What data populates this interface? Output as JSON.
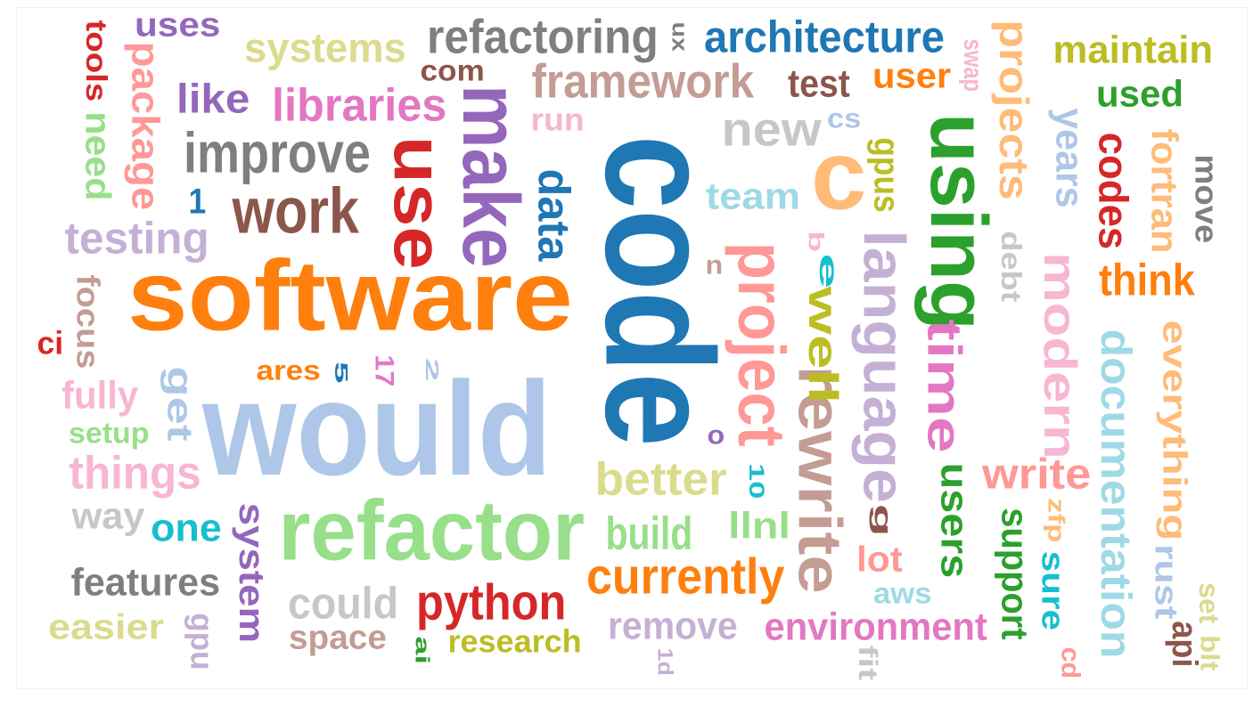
{
  "words": [
    {
      "text": "software",
      "color": "#ff7f0e"
    },
    {
      "text": "would",
      "color": "#aec7e8"
    },
    {
      "text": "code",
      "color": "#1f77b4"
    },
    {
      "text": "refactor",
      "color": "#98df8a"
    },
    {
      "text": "using",
      "color": "#2ca02c"
    },
    {
      "text": "make",
      "color": "#9467bd"
    },
    {
      "text": "use",
      "color": "#d62728"
    },
    {
      "text": "work",
      "color": "#8c564b"
    },
    {
      "text": "improve",
      "color": "#7f7f7f"
    },
    {
      "text": "c",
      "color": "#ffbb78"
    },
    {
      "text": "project",
      "color": "#ff9896"
    },
    {
      "text": "rewrite",
      "color": "#c49c94"
    },
    {
      "text": "language",
      "color": "#c5b0d5"
    },
    {
      "text": "time",
      "color": "#e377c2"
    },
    {
      "text": "modern",
      "color": "#f7b6d2"
    },
    {
      "text": "documentation",
      "color": "#9edae5"
    },
    {
      "text": "everything",
      "color": "#ffbb78"
    },
    {
      "text": "refactoring",
      "color": "#7f7f7f"
    },
    {
      "text": "architecture",
      "color": "#1f77b4"
    },
    {
      "text": "framework",
      "color": "#c49c94"
    },
    {
      "text": "systems",
      "color": "#dbdb8d"
    },
    {
      "text": "libraries",
      "color": "#e377c2"
    },
    {
      "text": "testing",
      "color": "#c5b0d5"
    },
    {
      "text": "package",
      "color": "#ff9896"
    },
    {
      "text": "tools",
      "color": "#d62728"
    },
    {
      "text": "uses",
      "color": "#9467bd"
    },
    {
      "text": "like",
      "color": "#9467bd"
    },
    {
      "text": "need",
      "color": "#98df8a"
    },
    {
      "text": "focus",
      "color": "#c49c94"
    },
    {
      "text": "ci",
      "color": "#d62728"
    },
    {
      "text": "1",
      "color": "#1f77b4"
    },
    {
      "text": "fully",
      "color": "#f7b6d2"
    },
    {
      "text": "setup",
      "color": "#98df8a"
    },
    {
      "text": "get",
      "color": "#aec7e8"
    },
    {
      "text": "things",
      "color": "#f7b6d2"
    },
    {
      "text": "way",
      "color": "#c7c7c7"
    },
    {
      "text": "one",
      "color": "#17becf"
    },
    {
      "text": "features",
      "color": "#7f7f7f"
    },
    {
      "text": "easier",
      "color": "#dbdb8d"
    },
    {
      "text": "gpu",
      "color": "#c5b0d5"
    },
    {
      "text": "system",
      "color": "#9467bd"
    },
    {
      "text": "could",
      "color": "#c7c7c7"
    },
    {
      "text": "space",
      "color": "#c49c94"
    },
    {
      "text": "python",
      "color": "#d62728"
    },
    {
      "text": "ai",
      "color": "#2ca02c"
    },
    {
      "text": "research",
      "color": "#bcbd22"
    },
    {
      "text": "ares",
      "color": "#ff7f0e"
    },
    {
      "text": "5",
      "color": "#1f77b4"
    },
    {
      "text": "17",
      "color": "#e377c2"
    },
    {
      "text": "2",
      "color": "#aec7e8"
    },
    {
      "text": "data",
      "color": "#1f77b4"
    },
    {
      "text": "run",
      "color": "#f7b6d2"
    },
    {
      "text": "com",
      "color": "#8c564b"
    },
    {
      "text": "ux",
      "color": "#7f7f7f"
    },
    {
      "text": "test",
      "color": "#8c564b"
    },
    {
      "text": "user",
      "color": "#ff7f0e"
    },
    {
      "text": "swap",
      "color": "#f7b6d2"
    },
    {
      "text": "new",
      "color": "#c7c7c7"
    },
    {
      "text": "cs",
      "color": "#aec7e8"
    },
    {
      "text": "team",
      "color": "#9edae5"
    },
    {
      "text": "gpus",
      "color": "#bcbd22"
    },
    {
      "text": "projects",
      "color": "#ffbb78"
    },
    {
      "text": "maintain",
      "color": "#bcbd22"
    },
    {
      "text": "used",
      "color": "#2ca02c"
    },
    {
      "text": "years",
      "color": "#aec7e8"
    },
    {
      "text": "codes",
      "color": "#d62728"
    },
    {
      "text": "fortran",
      "color": "#ffbb78"
    },
    {
      "text": "move",
      "color": "#7f7f7f"
    },
    {
      "text": "think",
      "color": "#ff7f0e"
    },
    {
      "text": "debt",
      "color": "#c7c7c7"
    },
    {
      "text": "b",
      "color": "#f7b6d2"
    },
    {
      "text": "e",
      "color": "#17becf"
    },
    {
      "text": "n",
      "color": "#c49c94"
    },
    {
      "text": "well",
      "color": "#bcbd22"
    },
    {
      "text": "o",
      "color": "#9467bd"
    },
    {
      "text": "10",
      "color": "#17becf"
    },
    {
      "text": "better",
      "color": "#dbdb8d"
    },
    {
      "text": "build",
      "color": "#98df8a"
    },
    {
      "text": "llnl",
      "color": "#98df8a"
    },
    {
      "text": "currently",
      "color": "#ff7f0e"
    },
    {
      "text": "remove",
      "color": "#c5b0d5"
    },
    {
      "text": "1d",
      "color": "#c5b0d5"
    },
    {
      "text": "environment",
      "color": "#e377c2"
    },
    {
      "text": "g",
      "color": "#8c564b"
    },
    {
      "text": "lot",
      "color": "#ff9896"
    },
    {
      "text": "aws",
      "color": "#9edae5"
    },
    {
      "text": "fit",
      "color": "#c7c7c7"
    },
    {
      "text": "users",
      "color": "#2ca02c"
    },
    {
      "text": "write",
      "color": "#ff9896"
    },
    {
      "text": "zfp",
      "color": "#ffbb78"
    },
    {
      "text": "support",
      "color": "#2ca02c"
    },
    {
      "text": "sure",
      "color": "#17becf"
    },
    {
      "text": "cd",
      "color": "#ff9896"
    },
    {
      "text": "rust",
      "color": "#aec7e8"
    },
    {
      "text": "api",
      "color": "#8c564b"
    },
    {
      "text": "set",
      "color": "#dbdb8d"
    },
    {
      "text": "blt",
      "color": "#dbdb8d"
    }
  ]
}
